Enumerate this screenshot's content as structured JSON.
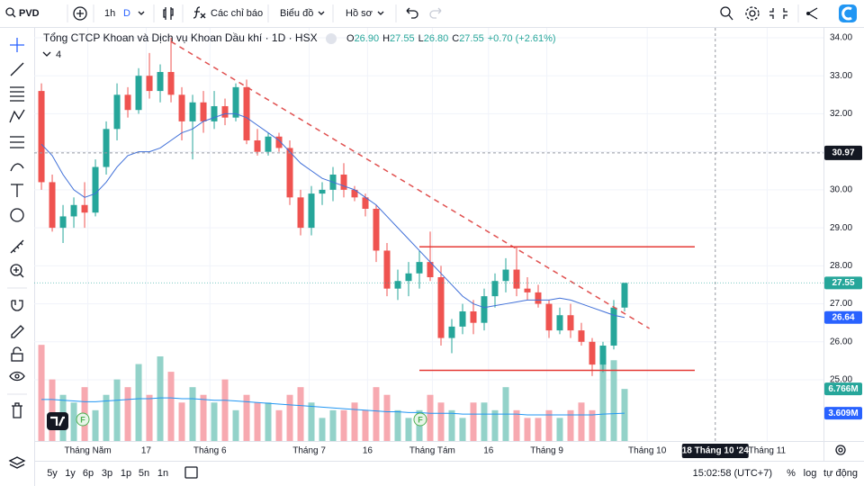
{
  "toolbar": {
    "symbol": "PVD",
    "interval": "1h",
    "interval_active": "D",
    "indicators": "Các chỉ báo",
    "chart_type": "Biểu đồ",
    "profile": "Hồ sơ"
  },
  "legend": {
    "title": "Tổng CTCP Khoan và Dịch vụ Khoan Dầu khí · 1D · HSX",
    "o_key": "O",
    "o": "26.90",
    "h_key": "H",
    "h": "27.55",
    "l_key": "L",
    "l": "26.80",
    "c_key": "C",
    "c": "27.55",
    "change": "+0.70 (+2.61%)",
    "indicators_count": "4"
  },
  "bottom_bar": {
    "ranges": [
      "5y",
      "1y",
      "6p",
      "3p",
      "1p",
      "5n",
      "1n"
    ],
    "clock": "15:02:58 (UTC+7)",
    "percent": "%",
    "log": "log",
    "auto": "tự động"
  },
  "chart_data": {
    "type": "candlestick",
    "xlim": [
      -0.67,
      72.42
    ],
    "ylim": [
      23.39,
      34.26
    ],
    "y2lim": [
      0,
      53.7
    ],
    "grid": true,
    "up_color": "#26a69a",
    "down_color": "#ef5350",
    "volume_up_color": "#93d2c9",
    "volume_down_color": "#f7a9b0",
    "candles": {
      "open": [
        32.6,
        30.2,
        29.0,
        29.3,
        29.6,
        29.4,
        30.6,
        31.6,
        32.5,
        32.1,
        33.0,
        32.6,
        33.1,
        32.5,
        31.8,
        32.3,
        31.8,
        32.2,
        31.9,
        32.7,
        31.3,
        31.0,
        31.4,
        31.1,
        29.8,
        29.0,
        29.9,
        30.0,
        30.4,
        30.0,
        29.8,
        29.5,
        28.4,
        27.4,
        27.6,
        27.8,
        28.1,
        27.7,
        26.1,
        26.4,
        26.8,
        26.5,
        27.2,
        27.6,
        27.9,
        27.4,
        27.3,
        27.0,
        26.3,
        26.7,
        26.3,
        26.0,
        25.4,
        25.9,
        26.9
      ],
      "high": [
        32.8,
        30.4,
        29.6,
        29.8,
        30.2,
        30.8,
        31.8,
        32.8,
        32.7,
        33.2,
        33.6,
        33.3,
        34.0,
        32.7,
        32.5,
        32.6,
        32.6,
        32.4,
        32.8,
        32.9,
        31.6,
        31.5,
        31.5,
        31.3,
        30.0,
        30.1,
        30.2,
        30.6,
        30.7,
        30.1,
        29.9,
        29.6,
        28.6,
        27.9,
        28.1,
        28.4,
        28.9,
        28.0,
        26.6,
        27.0,
        27.1,
        27.4,
        27.8,
        28.2,
        28.5,
        27.7,
        27.5,
        27.1,
        26.9,
        27.0,
        26.5,
        26.1,
        26.0,
        27.1,
        27.55
      ],
      "low": [
        30.0,
        28.9,
        28.6,
        29.0,
        29.0,
        29.3,
        30.4,
        31.3,
        31.9,
        32.0,
        32.4,
        32.3,
        32.3,
        31.3,
        30.8,
        31.5,
        31.6,
        31.7,
        31.8,
        31.2,
        30.9,
        30.9,
        31.0,
        29.6,
        28.8,
        28.8,
        29.6,
        29.7,
        29.8,
        29.7,
        29.3,
        28.1,
        27.2,
        27.1,
        27.2,
        27.4,
        27.6,
        25.9,
        25.7,
        26.2,
        26.2,
        26.3,
        26.9,
        27.3,
        27.2,
        27.1,
        26.9,
        26.1,
        26.2,
        26.1,
        25.9,
        25.1,
        25.2,
        25.8,
        26.8
      ],
      "close": [
        30.2,
        29.0,
        29.3,
        29.6,
        29.4,
        30.6,
        31.6,
        32.5,
        32.1,
        33.0,
        32.6,
        33.1,
        32.5,
        31.8,
        32.3,
        31.8,
        32.2,
        31.9,
        32.7,
        31.3,
        31.0,
        31.4,
        31.1,
        29.8,
        29.0,
        29.9,
        30.0,
        30.4,
        30.0,
        29.8,
        29.5,
        28.4,
        27.4,
        27.6,
        27.8,
        28.1,
        27.7,
        26.1,
        26.4,
        26.8,
        26.5,
        27.2,
        27.6,
        27.9,
        27.4,
        27.3,
        27.0,
        26.3,
        26.7,
        26.3,
        26.0,
        25.4,
        25.9,
        26.9,
        27.55
      ]
    },
    "volume": {
      "axis": "y2",
      "values": [
        12.5,
        8,
        6,
        5,
        7,
        4,
        6,
        8,
        7,
        10,
        6,
        11,
        9,
        5,
        7,
        6,
        5,
        8,
        4,
        6,
        5,
        5,
        4,
        6,
        7,
        5,
        3,
        4,
        4,
        5,
        4,
        7,
        6,
        4,
        3,
        4,
        6,
        5,
        4,
        3,
        5,
        5,
        4,
        7,
        4,
        3,
        3,
        4,
        3,
        4,
        5,
        4,
        11,
        10.5,
        6.766
      ]
    },
    "ma": {
      "color": "#3f6fd8",
      "values": [
        31.2,
        30.9,
        30.4,
        30.0,
        29.8,
        29.9,
        30.2,
        30.6,
        30.9,
        31.0,
        31.0,
        31.1,
        31.3,
        31.5,
        31.6,
        31.8,
        31.9,
        32.0,
        32.0,
        31.9,
        31.7,
        31.5,
        31.3,
        31.0,
        30.7,
        30.5,
        30.3,
        30.2,
        30.1,
        30.0,
        29.8,
        29.6,
        29.3,
        29.0,
        28.7,
        28.4,
        28.1,
        27.8,
        27.5,
        27.2,
        27.0,
        26.9,
        26.95,
        27.0,
        27.05,
        27.1,
        27.1,
        27.1,
        27.15,
        27.1,
        27.0,
        26.9,
        26.8,
        26.7,
        26.64
      ]
    },
    "volume_ma": {
      "axis": "y2",
      "color": "#2196f3",
      "values": [
        5.4,
        5.4,
        5.3,
        5.2,
        5.1,
        5.1,
        5.2,
        5.3,
        5.4,
        5.5,
        5.5,
        5.6,
        5.6,
        5.5,
        5.5,
        5.4,
        5.3,
        5.3,
        5.2,
        5.1,
        5.0,
        4.9,
        4.8,
        4.7,
        4.6,
        4.5,
        4.4,
        4.3,
        4.2,
        4.1,
        4.0,
        3.9,
        3.8,
        3.8,
        3.7,
        3.7,
        3.6,
        3.6,
        3.6,
        3.5,
        3.5,
        3.5,
        3.5,
        3.5,
        3.5,
        3.4,
        3.4,
        3.4,
        3.4,
        3.4,
        3.4,
        3.4,
        3.5,
        3.55,
        3.609
      ]
    },
    "drawings": [
      {
        "x": [
          12,
          56.3
        ],
        "y": [
          33.9,
          26.35
        ],
        "color": "#e0504f",
        "dashed": true
      },
      {
        "x": [
          35,
          60.5
        ],
        "y": [
          28.5,
          28.5
        ],
        "color": "#e53935",
        "dashed": false
      },
      {
        "x": [
          35,
          60.5
        ],
        "y": [
          25.25,
          25.25
        ],
        "color": "#e53935",
        "dashed": false
      }
    ],
    "events": [
      {
        "index": 3.83,
        "label": "F"
      },
      {
        "index": 35.08,
        "label": "F"
      }
    ],
    "yticks": [
      {
        "value": 25,
        "label": "25.00"
      },
      {
        "value": 26,
        "label": "26.00"
      },
      {
        "value": 27,
        "label": "27.00"
      },
      {
        "value": 28,
        "label": "28.00"
      },
      {
        "value": 29,
        "label": "29.00"
      },
      {
        "value": 30,
        "label": "30.00"
      },
      {
        "value": 31,
        "label": "31.00"
      },
      {
        "value": 32,
        "label": "32.00"
      },
      {
        "value": 33,
        "label": "33.00"
      },
      {
        "value": 34,
        "label": "34.00"
      }
    ],
    "xticks": [
      {
        "value": 4.3,
        "label": "Tháng Năm"
      },
      {
        "value": 9.7,
        "label": "17"
      },
      {
        "value": 15.6,
        "label": "Tháng 6"
      },
      {
        "value": 24.8,
        "label": "Tháng 7"
      },
      {
        "value": 30.2,
        "label": "16"
      },
      {
        "value": 36.2,
        "label": "Tháng Tám"
      },
      {
        "value": 41.4,
        "label": "16"
      },
      {
        "value": 46.8,
        "label": "Tháng 9"
      },
      {
        "value": 56.1,
        "label": "Tháng 10"
      },
      {
        "value": 67.2,
        "label": "Tháng 11"
      }
    ],
    "crosshair": {
      "price": 30.97,
      "index": 62.4,
      "time_label": "18 Tháng 10 '24"
    },
    "tags": [
      {
        "value": 27.55,
        "color": "#26a69a",
        "line": true
      },
      {
        "value": 26.64,
        "color": "#2962ff",
        "line": false
      },
      {
        "value": 6.766,
        "label": "6.766M",
        "color": "#26a69a",
        "axis": "y2"
      },
      {
        "value": 3.609,
        "label": "3.609M",
        "color": "#2962ff",
        "axis": "y2"
      }
    ]
  }
}
